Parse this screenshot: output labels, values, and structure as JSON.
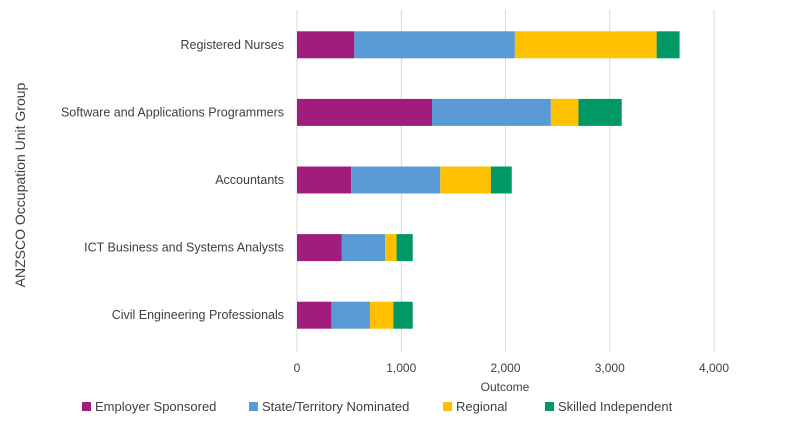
{
  "chart_data": {
    "type": "bar",
    "orientation": "horizontal",
    "stacked": true,
    "title": "",
    "xlabel": "Outcome",
    "ylabel": "ANZSCO Occupation Unit Group",
    "xlim": [
      0,
      4000
    ],
    "xticks": [
      0,
      1000,
      2000,
      3000,
      4000
    ],
    "xtick_labels": [
      "0",
      "1,000",
      "2,000",
      "3,000",
      "4,000"
    ],
    "grid": "vertical",
    "legend_position": "bottom",
    "categories": [
      "Registered Nurses",
      "Software and Applications Programmers",
      "Accountants",
      "ICT Business and Systems Analysts",
      "Civil Engineering Professionals"
    ],
    "series": [
      {
        "name": "Employer Sponsored",
        "color": "#A01C7D",
        "values": [
          550,
          1295,
          520,
          430,
          330
        ]
      },
      {
        "name": "State/Territory Nominated",
        "color": "#5B9BD5",
        "values": [
          1540,
          1140,
          855,
          415,
          370
        ]
      },
      {
        "name": "Regional",
        "color": "#FFC000",
        "values": [
          1360,
          265,
          485,
          110,
          225
        ]
      },
      {
        "name": "Skilled Independent",
        "color": "#009966",
        "values": [
          220,
          415,
          200,
          155,
          185
        ]
      }
    ]
  }
}
